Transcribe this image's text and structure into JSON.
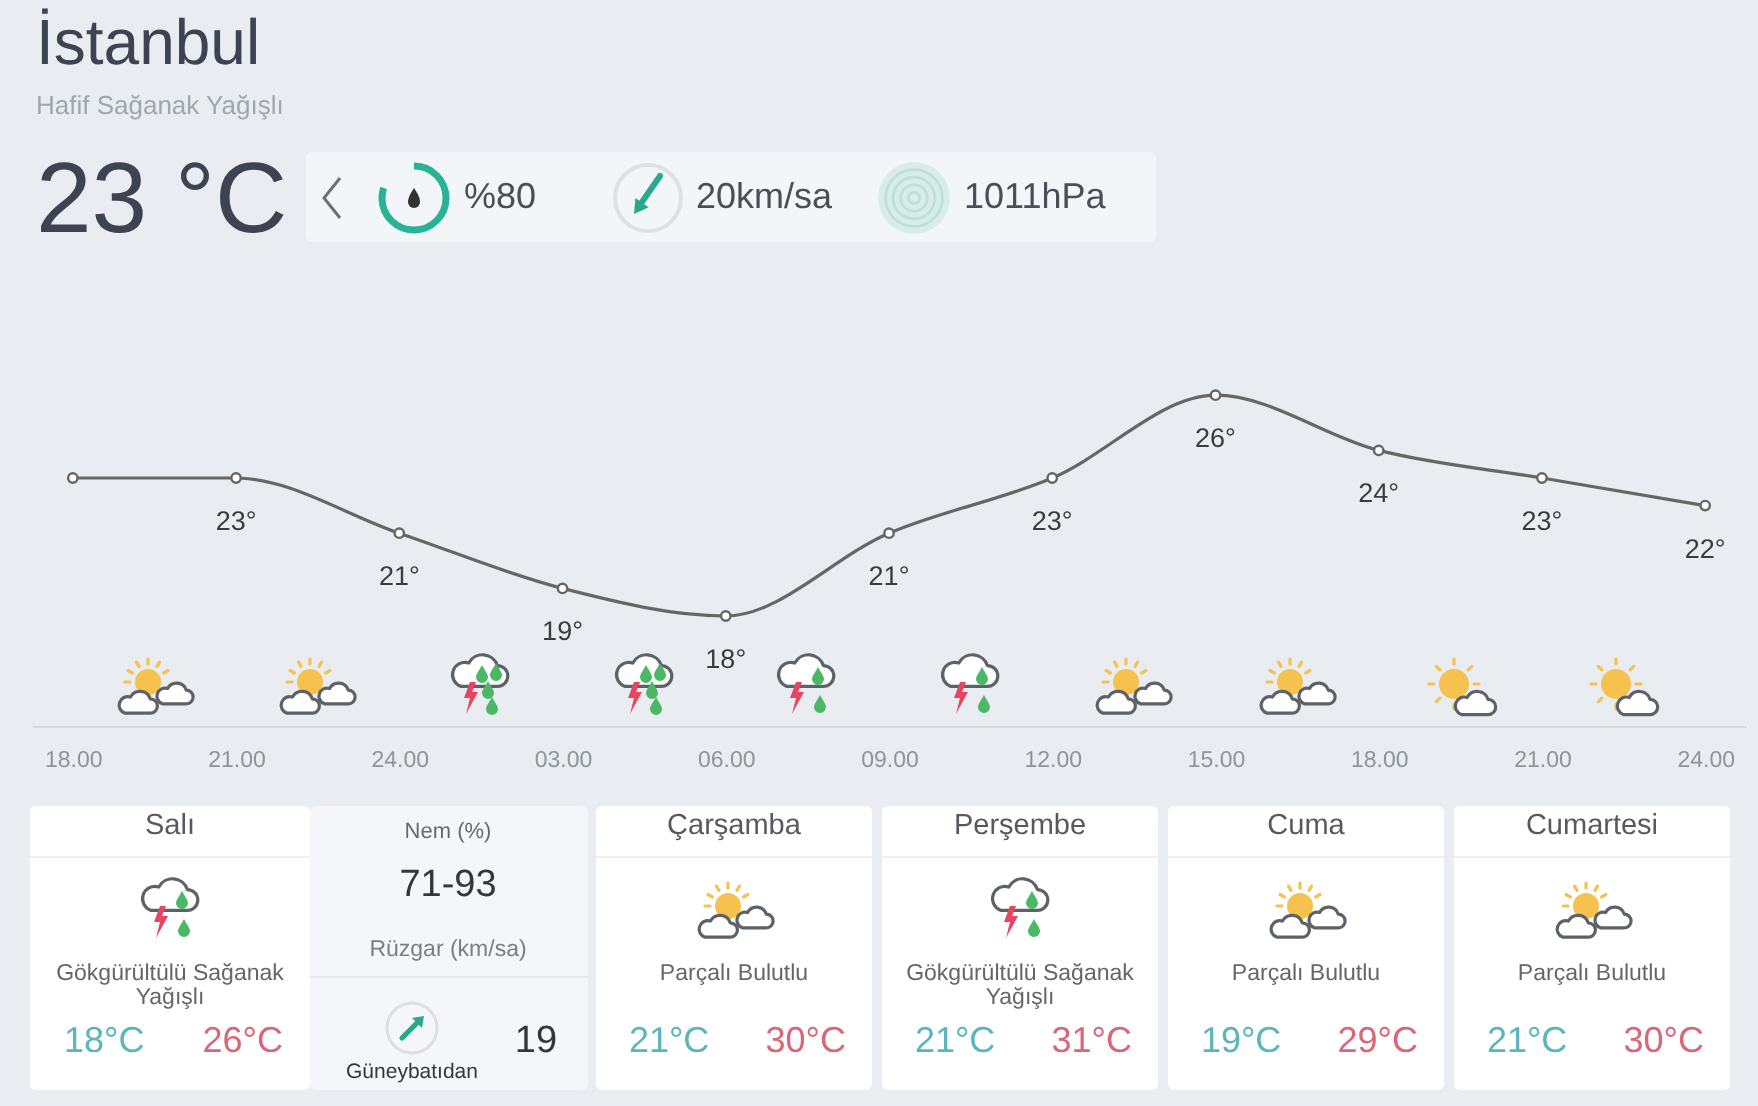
{
  "chart_data": {
    "type": "line",
    "title": "İstanbul",
    "subtitle": "Hafif Sağanak Yağışlı",
    "categories": [
      "18.00",
      "21.00",
      "24.00",
      "03.00",
      "06.00",
      "09.00",
      "12.00",
      "15.00",
      "18.00",
      "21.00",
      "24.00"
    ],
    "values": [
      23,
      23,
      21,
      19,
      18,
      21,
      23,
      26,
      24,
      23,
      22
    ],
    "value_labels": [
      null,
      "23°",
      "21°",
      "19°",
      "18°",
      "21°",
      "23°",
      "26°",
      "24°",
      "23°",
      "22°"
    ],
    "color": "#666666",
    "marker": "circle",
    "tick_labels": "x",
    "annotations": [
      "23 °C",
      "%80",
      "20km/sa",
      "1011hPa",
      "Salı",
      "Gökgürültülü Sağanak Yağışlı",
      "18°C",
      "26°C",
      "Nem (%)",
      "71-93",
      "Rüzgar (km/sa)",
      "Güneybatıdan",
      "19",
      "Çarşamba",
      "Parçalı Bulutlu",
      "21°C",
      "30°C",
      "Perşembe",
      "Gökgürültülü Sağanak Yağışlı",
      "21°C",
      "31°C",
      "Cuma",
      "Parçalı Bulutlu",
      "19°C",
      "29°C",
      "Cumartesi",
      "Parçalı Bulutlu",
      "21°C",
      "30°C"
    ]
  }
}
